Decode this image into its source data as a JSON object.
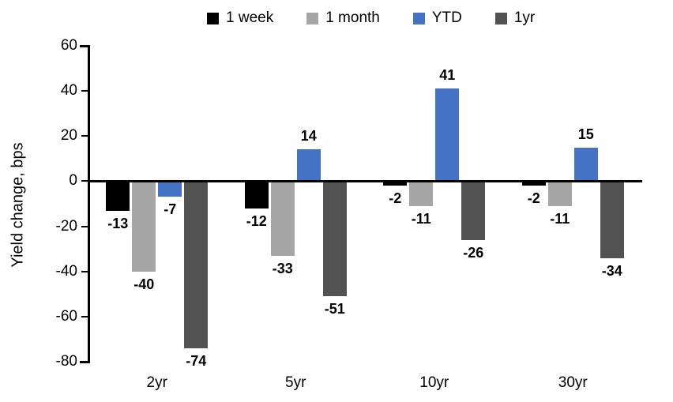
{
  "chart_data": {
    "type": "bar",
    "title": "",
    "xlabel": "",
    "ylabel": "Yield change, bps",
    "categories": [
      "2yr",
      "5yr",
      "10yr",
      "30yr"
    ],
    "series": [
      {
        "name": "1 week",
        "color": "#000000",
        "values": [
          -13,
          -12,
          -2,
          -2
        ]
      },
      {
        "name": "1 month",
        "color": "#A6A6A6",
        "values": [
          -40,
          -33,
          -11,
          -11
        ]
      },
      {
        "name": "YTD",
        "color": "#4472C4",
        "values": [
          -7,
          14,
          41,
          15
        ]
      },
      {
        "name": "1yr",
        "color": "#525252",
        "values": [
          -74,
          -51,
          -26,
          -34
        ]
      }
    ],
    "ylim": [
      -80,
      60
    ],
    "yticks": [
      60,
      40,
      20,
      0,
      -20,
      -40,
      -60,
      -80
    ],
    "grid": false,
    "data_labels": true,
    "legend_position": "top",
    "axis_color": "#000000"
  }
}
